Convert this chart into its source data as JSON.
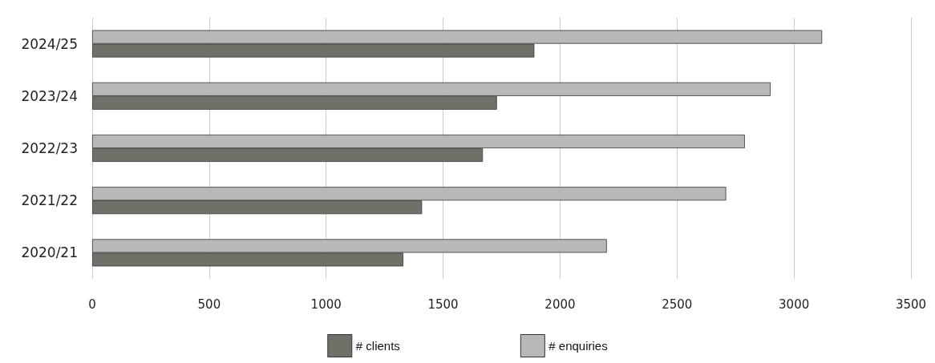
{
  "chart_data": {
    "type": "bar",
    "orientation": "horizontal",
    "categories": [
      "2024/25",
      "2023/24",
      "2022/23",
      "2021/22",
      "2020/21"
    ],
    "series": [
      {
        "name": "# clients",
        "color": "#707068",
        "values": [
          1890,
          1730,
          1670,
          1410,
          1330
        ]
      },
      {
        "name": "# enquiries",
        "color": "#b8b8b8",
        "values": [
          3120,
          2900,
          2790,
          2710,
          2200
        ]
      }
    ],
    "xlim": [
      0,
      3500
    ],
    "xticks": [
      0,
      500,
      1000,
      1500,
      2000,
      2500,
      3000,
      3500
    ],
    "grid": "x",
    "legend": "bottom"
  }
}
